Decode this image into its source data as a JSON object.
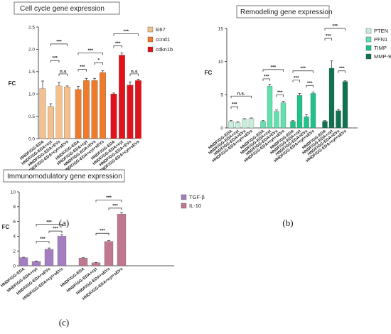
{
  "chart_data": [
    {
      "type": "bar",
      "panel_label": "(a)",
      "title": "Cell cycle gene expression",
      "ylabel": "FC",
      "ylim": [
        0,
        2.5
      ],
      "yticks": [
        "0.0",
        "0.5",
        "1.0",
        "1.5",
        "2.0",
        "2.5"
      ],
      "categories": [
        "HNDF/GG-EDA",
        "HNDF/GG-EDA+cyt",
        "HNDF/GG-EDA+EVs",
        "HNDF/GG-EDA+cyt+sEVs"
      ],
      "series": [
        {
          "name": "ki67",
          "color": "#f4c08e",
          "values": [
            1.12,
            0.72,
            1.18,
            1.16
          ],
          "errors": [
            0.17,
            0.06,
            0.08,
            0.02
          ]
        },
        {
          "name": "ccnd1",
          "color": "#ee7a2a",
          "values": [
            1.1,
            1.3,
            1.3,
            1.48
          ],
          "errors": [
            0.07,
            0.05,
            0.05,
            0.04
          ]
        },
        {
          "name": "cdkn1b",
          "color": "#e1121b",
          "values": [
            1.0,
            1.87,
            1.2,
            1.3
          ],
          "errors": [
            0.02,
            0.05,
            0.07,
            0.03
          ]
        }
      ],
      "significance": [
        {
          "series": 0,
          "from": 1,
          "to": 3,
          "label": "***",
          "y": 2.12
        },
        {
          "series": 0,
          "from": 1,
          "to": 2,
          "label": "***",
          "y": 1.75
        },
        {
          "series": 0,
          "from": 2,
          "to": 3,
          "label": "n.s",
          "y": 1.45
        },
        {
          "series": 1,
          "from": 0,
          "to": 3,
          "label": "***",
          "y": 1.92
        },
        {
          "series": 1,
          "from": 2,
          "to": 3,
          "label": "*",
          "y": 1.7
        },
        {
          "series": 1,
          "from": 0,
          "to": 1,
          "label": "***",
          "y": 1.55
        },
        {
          "series": 2,
          "from": 0,
          "to": 3,
          "label": "***",
          "y": 2.35
        },
        {
          "series": 2,
          "from": 0,
          "to": 1,
          "label": "***",
          "y": 2.08
        },
        {
          "series": 2,
          "from": 2,
          "to": 3,
          "label": "n.s",
          "y": 1.45
        }
      ]
    },
    {
      "type": "bar",
      "panel_label": "(b)",
      "title": "Remodeling gene expression",
      "ylabel": "FC",
      "ylim": [
        0,
        15
      ],
      "yticks": [
        "0",
        "5",
        "10",
        "15"
      ],
      "categories": [
        "HNDF/GG-EDA",
        "HNDF/GG-EDA+cyt",
        "HNDF/GG-EDA+EVs",
        "HNDF/GG-EDA+cyt+sEVs"
      ],
      "series": [
        {
          "name": "PTEN",
          "color": "#c6f0dc",
          "values": [
            1.0,
            0.8,
            1.3,
            1.4
          ],
          "errors": [
            0.1,
            0.1,
            0.1,
            0.1
          ]
        },
        {
          "name": "PFN1",
          "color": "#5fe2ad",
          "values": [
            1.0,
            6.3,
            2.5,
            3.8
          ],
          "errors": [
            0.1,
            0.3,
            0.2,
            0.2
          ]
        },
        {
          "name": "TIMP",
          "color": "#1ec389",
          "values": [
            1.0,
            4.9,
            1.7,
            5.2
          ],
          "errors": [
            0.1,
            0.3,
            0.3,
            0.2
          ]
        },
        {
          "name": "MMP-9",
          "color": "#0f7350",
          "values": [
            1.0,
            9.0,
            2.6,
            7.0
          ],
          "errors": [
            0.1,
            1.1,
            0.2,
            0.1
          ]
        }
      ],
      "significance": [
        {
          "series": 0,
          "from": 0,
          "to": 3,
          "label": "n.s.",
          "y": 4.8
        },
        {
          "series": 0,
          "from": 0,
          "to": 1,
          "label": "***",
          "y": 3.2
        },
        {
          "series": 1,
          "from": 0,
          "to": 3,
          "label": "***",
          "y": 8.8
        },
        {
          "series": 1,
          "from": 0,
          "to": 1,
          "label": "***",
          "y": 7.4
        },
        {
          "series": 1,
          "from": 2,
          "to": 3,
          "label": "***",
          "y": 5.0
        },
        {
          "series": 2,
          "from": 0,
          "to": 3,
          "label": "***",
          "y": 8.6
        },
        {
          "series": 2,
          "from": 0,
          "to": 1,
          "label": "***",
          "y": 7.2
        },
        {
          "series": 2,
          "from": 2,
          "to": 3,
          "label": "***",
          "y": 6.4
        },
        {
          "series": 3,
          "from": 0,
          "to": 3,
          "label": "***",
          "y": 15.0
        },
        {
          "series": 3,
          "from": 0,
          "to": 1,
          "label": "***",
          "y": 13.5
        },
        {
          "series": 3,
          "from": 2,
          "to": 3,
          "label": "***",
          "y": 8.6
        }
      ]
    },
    {
      "type": "bar",
      "panel_label": "(c)",
      "title": "Immunomodulatory gene expression",
      "ylabel": "FC",
      "ylim": [
        0,
        10
      ],
      "yticks": [
        "0",
        "2",
        "4",
        "6",
        "8",
        "10"
      ],
      "categories": [
        "HNDF/GG-EDA",
        "HNDF/GG-EDA+cyt",
        "HNDF/GG-EDA+sEVs",
        "HNDF/GG-EDA+cyt+sEVs"
      ],
      "series": [
        {
          "name": "TGF-β",
          "color": "#a57ec0",
          "values": [
            1.1,
            0.6,
            2.25,
            4.0
          ],
          "errors": [
            0.05,
            0.05,
            0.15,
            0.2
          ]
        },
        {
          "name": "IL-10",
          "color": "#c07890",
          "values": [
            1.05,
            0.4,
            3.3,
            7.0
          ],
          "errors": [
            0.05,
            0.05,
            0.1,
            0.2
          ]
        }
      ],
      "significance": [
        {
          "series": 0,
          "from": 1,
          "to": 3,
          "label": "***",
          "y": 5.6
        },
        {
          "series": 0,
          "from": 1,
          "to": 2,
          "label": "***",
          "y": 3.3
        },
        {
          "series": 0,
          "from": 2,
          "to": 3,
          "label": "***",
          "y": 4.7
        },
        {
          "series": 1,
          "from": 1,
          "to": 3,
          "label": "***",
          "y": 8.9
        },
        {
          "series": 1,
          "from": 1,
          "to": 2,
          "label": "***",
          "y": 4.4
        },
        {
          "series": 1,
          "from": 2,
          "to": 3,
          "label": "***",
          "y": 7.8
        }
      ]
    }
  ]
}
